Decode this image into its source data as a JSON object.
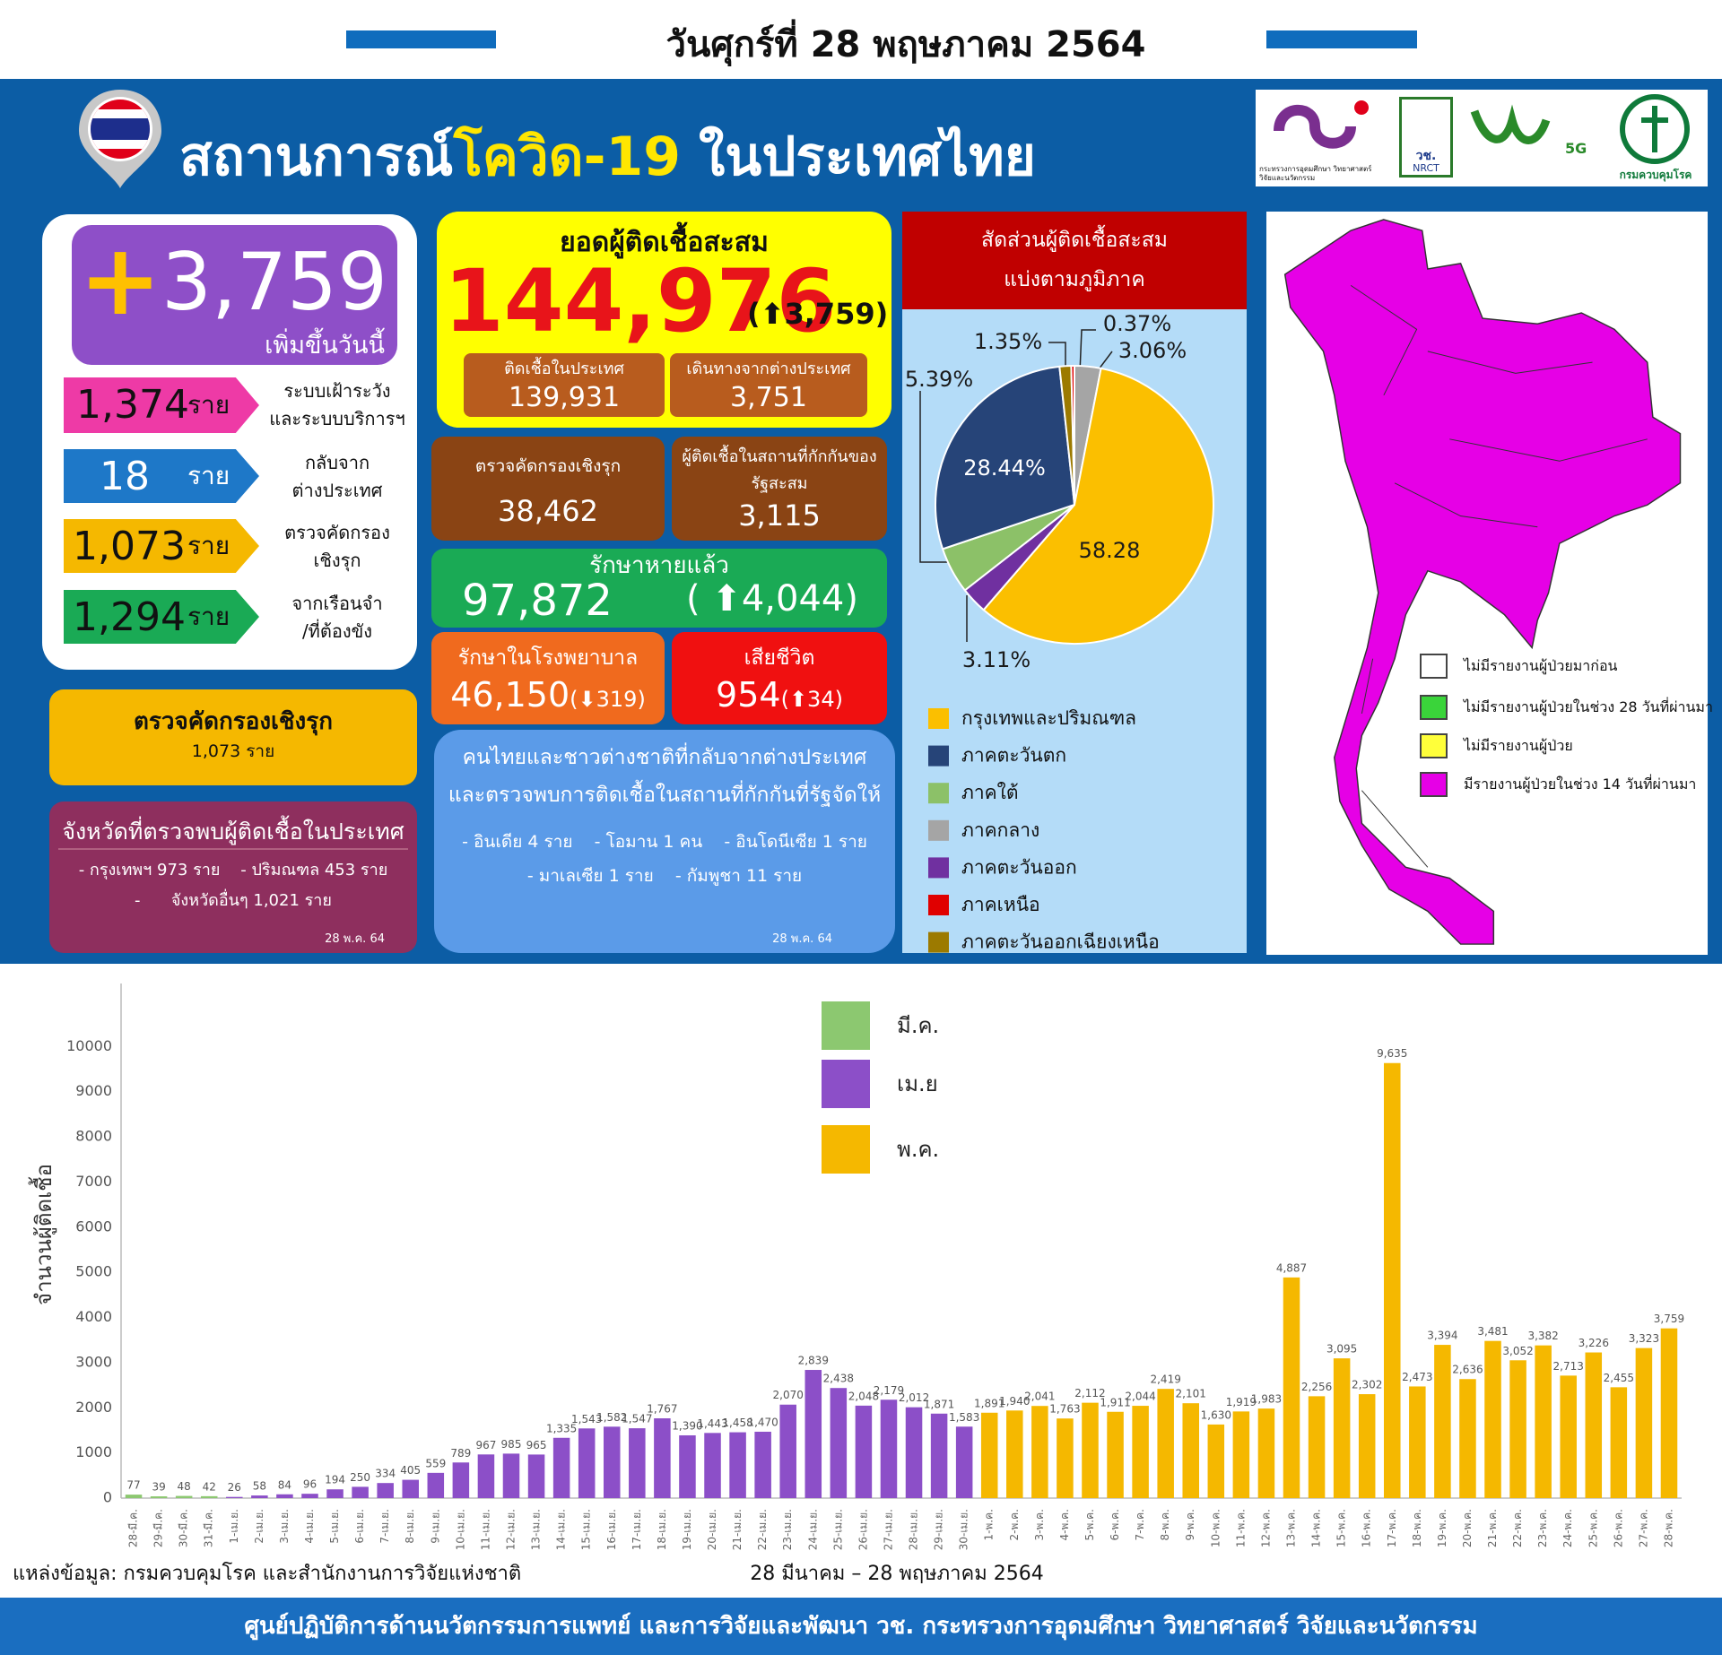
{
  "header": {
    "date": "วันศุกร์ที่ 28 พฤษภาคม 2564",
    "title_1": "สถานการณ์",
    "title_2": "โควิด-19",
    "title_3": "ในประเทศไทย"
  },
  "logos": [
    "กระทรวงการอุดมศึกษา วิทยาศาสตร์ วิจัยและนวัตกรรม",
    "วช.",
    "NRCT",
    "5G",
    "กรมควบคุมโรค"
  ],
  "new_cases": {
    "plus": "+",
    "value": "3,759",
    "label": "เพิ่มขึ้นวันนี้",
    "breakdown": [
      {
        "value": "1,374",
        "unit": "ราย",
        "label": [
          "ระบบเฝ้าระวัง",
          "และระบบบริการฯ"
        ]
      },
      {
        "value": "18",
        "unit": "ราย",
        "label": [
          "กลับจาก",
          "ต่างประเทศ"
        ]
      },
      {
        "value": "1,073",
        "unit": "ราย",
        "label": [
          "ตรวจคัดกรอง",
          "เชิงรุก"
        ]
      },
      {
        "value": "1,294",
        "unit": "ราย",
        "label": [
          "จากเรือนจำ",
          "/ที่ต้องขัง"
        ]
      }
    ]
  },
  "active_screening": {
    "title": "ตรวจคัดกรองเชิงรุก",
    "value": "1,073 ราย"
  },
  "provinces": {
    "title": "จังหวัดที่ตรวจพบผู้ติดเชื้อในประเทศ",
    "items": [
      "- กรุงเทพฯ 973 ราย    - ปริมณฑล 453 ราย",
      "-      จังหวัดอื่นๆ 1,021 ราย"
    ],
    "date": "28  พ.ค. 64"
  },
  "cumulative": {
    "title": "ยอดผู้ติดเชื้อสะสม",
    "value": "144,976",
    "change": "(⬆3,759)",
    "domestic_label": "ติดเชื้อในประเทศ",
    "domestic": "139,931",
    "imported_label": "เดินทางจากต่างประเทศ",
    "imported": "3,751"
  },
  "screening_total": {
    "label": "ตรวจคัดกรองเชิงรุก",
    "value": "38,462"
  },
  "quarantine_total": {
    "label": [
      "ผู้ติดเชื้อในสถานที่กักกันของ",
      "รัฐสะสม"
    ],
    "value": "3,115"
  },
  "recovered": {
    "label": "รักษาหายแล้ว",
    "value": "97,872",
    "change": "( ⬆4,044)"
  },
  "hospitalized": {
    "label": "รักษาในโรงพยาบาล",
    "value": "46,150",
    "change": "(⬇319)"
  },
  "deaths": {
    "label": "เสียชีวิต",
    "value": "954",
    "change": "(⬆34)"
  },
  "returnees": {
    "title": [
      "คนไทยและชาวต่างชาติที่กลับจากต่างประเทศ",
      "และตรวจพบการติดเชื้อในสถานที่กักกันที่รัฐจัดให้"
    ],
    "items": [
      "- อินเดีย 4 ราย    - โอมาน 1 คน    - อินโดนีเซีย 1 ราย",
      "- มาเลเซีย 1 ราย    - กัมพูชา 11 ราย"
    ],
    "date": "28 พ.ค. 64"
  },
  "map_legend": [
    "ไม่มีรายงานผู้ป่วยมาก่อน",
    "ไม่มีรายงานผู้ป่วยในช่วง 28 วันที่ผ่านมา",
    "ไม่มีรายงานผู้ป่วย",
    "มีรายงานผู้ป่วยในช่วง 14 วันที่ผ่านมา"
  ],
  "source": "แหล่งข้อมูล: กรมควบคุมโรค และสำนักงานการวิจัยแห่งชาติ",
  "footer": "ศูนย์ปฏิบัติการด้านนวัตกรรมการแพทย์ และการวิจัยและพัฒนา วช.  กระทรวงการอุดมศึกษา วิทยาศาสตร์ วิจัยและนวัตกรรม",
  "chart_data": [
    {
      "type": "pie",
      "title": "สัดส่วนผู้ติดเชื้อสะสม",
      "subtitle": "แบ่งตามภูมิภาค",
      "categories": [
        "กรุงเทพและปริมณฑล",
        "ภาคตะวันตก",
        "ภาคใต้",
        "ภาคกลาง",
        "ภาคตะวันออก",
        "ภาคเหนือ",
        "ภาคตะวันออกเฉียงเหนือ"
      ],
      "values": [
        58.28,
        28.44,
        5.39,
        3.06,
        3.11,
        0.37,
        1.35
      ],
      "value_labels": [
        "58.28",
        "28.44%",
        "5.39%",
        "3.06%",
        "3.11%",
        "0.37%",
        "1.35%"
      ],
      "colors": [
        "#fbbf00",
        "#264478",
        "#8cc168",
        "#a5a5a5",
        "#7030a0",
        "#e00000",
        "#9c7a00"
      ]
    },
    {
      "type": "bar",
      "x_label": "28 มีนาคม – 28 พฤษภาคม 2564",
      "y_label": "จำนวนผู้ติดเชื้อ",
      "categories": [
        "28-มี.ค.",
        "29-มี.ค.",
        "30-มี.ค.",
        "31-มี.ค.",
        "1-เม.ย.",
        "2-เม.ย.",
        "3-เม.ย.",
        "4-เม.ย.",
        "5-เม.ย.",
        "6-เม.ย.",
        "7-เม.ย.",
        "8-เม.ย.",
        "9-เม.ย.",
        "10-เม.ย.",
        "11-เม.ย.",
        "12-เม.ย.",
        "13-เม.ย.",
        "14-เม.ย.",
        "15-เม.ย.",
        "16-เม.ย.",
        "17-เม.ย.",
        "18-เม.ย.",
        "19-เม.ย.",
        "20-เม.ย.",
        "21-เม.ย.",
        "22-เม.ย.",
        "23-เม.ย.",
        "24-เม.ย.",
        "25-เม.ย.",
        "26-เม.ย.",
        "27-เม.ย.",
        "28-เม.ย.",
        "29-เม.ย.",
        "30-เม.ย.",
        "1-พ.ค.",
        "2-พ.ค.",
        "3-พ.ค.",
        "4-พ.ค.",
        "5-พ.ค.",
        "6-พ.ค.",
        "7-พ.ค.",
        "8-พ.ค.",
        "9-พ.ค.",
        "10-พ.ค.",
        "11-พ.ค.",
        "12-พ.ค.",
        "13-พ.ค.",
        "14-พ.ค.",
        "15-พ.ค.",
        "16-พ.ค.",
        "17-พ.ค.",
        "18-พ.ค.",
        "19-พ.ค.",
        "20-พ.ค.",
        "21-พ.ค.",
        "22-พ.ค.",
        "23-พ.ค.",
        "24-พ.ค.",
        "25-พ.ค.",
        "26-พ.ค.",
        "27-พ.ค.",
        "28-พ.ค."
      ],
      "series": [
        {
          "name": "มี.ค.",
          "color": "#8cc870",
          "values": [
            77,
            39,
            48,
            42,
            null,
            null,
            null,
            null,
            null,
            null,
            null,
            null,
            null,
            null,
            null,
            null,
            null,
            null,
            null,
            null,
            null,
            null,
            null,
            null,
            null,
            null,
            null,
            null,
            null,
            null,
            null,
            null,
            null,
            null,
            null,
            null,
            null,
            null,
            null,
            null,
            null,
            null,
            null,
            null,
            null,
            null,
            null,
            null,
            null,
            null,
            null,
            null,
            null,
            null,
            null,
            null,
            null,
            null,
            null,
            null,
            null,
            null
          ],
          "value_labels": [
            "77",
            "39",
            "48",
            "42",
            null,
            null,
            null,
            null,
            null,
            null,
            null,
            null,
            null,
            null,
            null,
            null,
            null,
            null,
            null,
            null,
            null,
            null,
            null,
            null,
            null,
            null,
            null,
            null,
            null,
            null,
            null,
            null,
            null,
            null,
            null,
            null,
            null,
            null,
            null,
            null,
            null,
            null,
            null,
            null,
            null,
            null,
            null,
            null,
            null,
            null,
            null,
            null,
            null,
            null,
            null,
            null,
            null,
            null,
            null,
            null,
            null,
            null
          ]
        },
        {
          "name": "เม.ย",
          "color": "#8c4fc8",
          "values": [
            null,
            null,
            null,
            null,
            26,
            58,
            84,
            96,
            194,
            250,
            334,
            405,
            559,
            789,
            967,
            985,
            965,
            1335,
            1543,
            1582,
            1547,
            1767,
            1390,
            1443,
            1458,
            1470,
            2070,
            2839,
            2438,
            2048,
            2179,
            2012,
            1871,
            1583,
            null,
            null,
            null,
            null,
            null,
            null,
            null,
            null,
            null,
            null,
            null,
            null,
            null,
            null,
            null,
            null,
            null,
            null,
            null,
            null,
            null,
            null,
            null,
            null,
            null,
            null,
            null,
            null
          ],
          "value_labels": [
            null,
            null,
            null,
            null,
            "26",
            "58",
            "84",
            "96",
            "194",
            "250",
            "334",
            "405",
            "559",
            "789",
            "967",
            "985",
            "965",
            "1,335",
            "1,543",
            "1,582",
            "1,547",
            "1,767",
            "1,390",
            "1,443",
            "1,458",
            "1,470",
            "2,070",
            "2,839",
            "2,438",
            "2,048",
            "2,179",
            "2,012",
            "1,871",
            "1,583",
            null,
            null,
            null,
            null,
            null,
            null,
            null,
            null,
            null,
            null,
            null,
            null,
            null,
            null,
            null,
            null,
            null,
            null,
            null,
            null,
            null,
            null,
            null,
            null,
            null,
            null,
            null,
            null
          ]
        },
        {
          "name": "พ.ค.",
          "color": "#f5b800",
          "values": [
            null,
            null,
            null,
            null,
            null,
            null,
            null,
            null,
            null,
            null,
            null,
            null,
            null,
            null,
            null,
            null,
            null,
            null,
            null,
            null,
            null,
            null,
            null,
            null,
            null,
            null,
            null,
            null,
            null,
            null,
            null,
            null,
            null,
            null,
            1891,
            1940,
            2041,
            1763,
            2112,
            1911,
            2044,
            2419,
            2101,
            1630,
            1919,
            1983,
            4887,
            2256,
            3095,
            2302,
            9635,
            2473,
            3394,
            2636,
            3481,
            3052,
            3382,
            2713,
            3226,
            2455,
            3323,
            3759
          ],
          "value_labels": [
            null,
            null,
            null,
            null,
            null,
            null,
            null,
            null,
            null,
            null,
            null,
            null,
            null,
            null,
            null,
            null,
            null,
            null,
            null,
            null,
            null,
            null,
            null,
            null,
            null,
            null,
            null,
            null,
            null,
            null,
            null,
            null,
            null,
            null,
            "1,891",
            "1,940",
            "2,041",
            "1,763",
            "2,112",
            "1,911",
            "2,044",
            "2,419",
            "2,101",
            "1,630",
            "1,919",
            "1,983",
            "4,887",
            "2,256",
            "3,095",
            "2,302",
            "9,635",
            "2,473",
            "3,394",
            "2,636",
            "3,481",
            "3,052",
            "3,382",
            "2,713",
            "3,226",
            "2,455",
            "3,323",
            "3,759"
          ]
        }
      ],
      "ylim": [
        0,
        11000
      ],
      "yticks": [
        0,
        1000,
        2000,
        3000,
        4000,
        5000,
        6000,
        7000,
        8000,
        9000,
        10000
      ],
      "grid": false
    }
  ]
}
